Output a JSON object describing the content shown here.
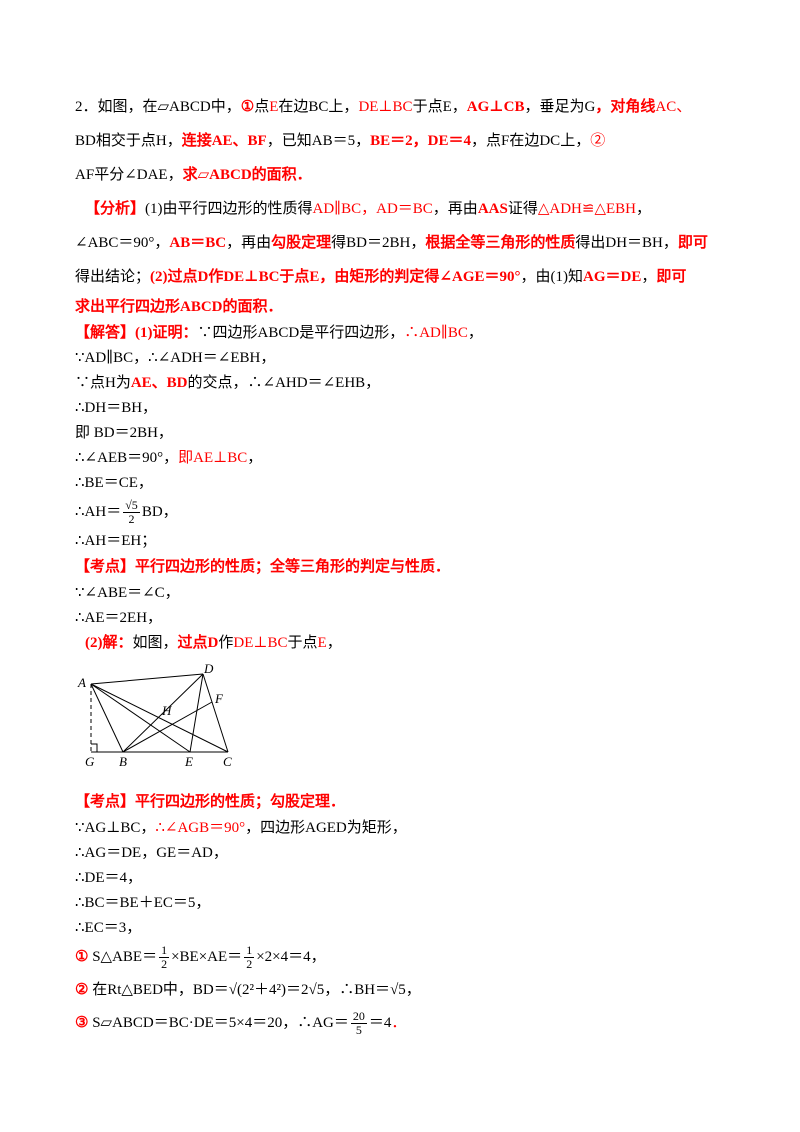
{
  "colors": {
    "red": "#ff0000",
    "black": "#000000",
    "background": "#ffffff"
  },
  "figure": {
    "labels": [
      "A",
      "D",
      "H",
      "F",
      "G",
      "B",
      "E",
      "C"
    ]
  },
  "lines": [
    {
      "k": "p",
      "blk": "t",
      "s": [
        {
          "t": "2．如图，在▱"
        },
        {
          "t": "ABCD"
        },
        {
          "t": "中，"
        },
        {
          "t": "①",
          "c": "r",
          "b": 1
        },
        {
          "t": "点"
        },
        {
          "t": "E",
          "c": "r"
        },
        {
          "t": "在边"
        },
        {
          "t": "BC"
        },
        {
          "t": "上，"
        },
        {
          "t": "DE⊥BC",
          "c": "r"
        },
        {
          "t": "于点"
        },
        {
          "t": "E"
        },
        {
          "t": "，"
        },
        {
          "t": "AG⊥CB",
          "c": "r",
          "b": 1
        },
        {
          "t": "，垂足为"
        },
        {
          "t": "G"
        },
        {
          "t": "，对角线",
          "c": "r",
          "b": 1
        },
        {
          "t": "AC、",
          "c": "r"
        }
      ]
    },
    {
      "k": "p",
      "blk": "t",
      "s": [
        {
          "t": "BD"
        },
        {
          "t": "相交于点"
        },
        {
          "t": "H"
        },
        {
          "t": "，"
        },
        {
          "t": "连接AE、BF",
          "c": "r",
          "b": 1
        },
        {
          "t": "，已知"
        },
        {
          "t": "AB＝5"
        },
        {
          "t": "，"
        },
        {
          "t": "BE＝2，DE＝4",
          "c": "r",
          "b": 1
        },
        {
          "t": "，点"
        },
        {
          "t": "F"
        },
        {
          "t": "在边"
        },
        {
          "t": "DC"
        },
        {
          "t": "上，"
        },
        {
          "t": "②",
          "c": "r"
        }
      ]
    },
    {
      "k": "p",
      "blk": "t",
      "s": [
        {
          "t": "AF"
        },
        {
          "t": "平分"
        },
        {
          "t": "∠DAE"
        },
        {
          "t": "，"
        },
        {
          "t": "求▱ABCD的面积．",
          "c": "r",
          "b": 1
        }
      ]
    },
    {
      "k": "p",
      "blk": "t",
      "ind": 1,
      "s": [
        {
          "t": "【分析】",
          "c": "r",
          "b": 1
        },
        {
          "t": "(1)由平行四边形的性质得"
        },
        {
          "t": "AD∥BC，AD＝BC",
          "c": "r"
        },
        {
          "t": "，再由"
        },
        {
          "t": "AAS",
          "c": "r",
          "b": 1
        },
        {
          "t": "证得"
        },
        {
          "t": "△ADH≌△EBH",
          "c": "r"
        },
        {
          "t": "，"
        }
      ]
    },
    {
      "k": "p",
      "blk": "t",
      "s": [
        {
          "t": "∠ABC＝90°，"
        },
        {
          "t": "AB＝BC",
          "c": "r",
          "b": 1
        },
        {
          "t": "，再由"
        },
        {
          "t": "勾股定理",
          "c": "r",
          "b": 1
        },
        {
          "t": "得"
        },
        {
          "t": "BD＝2BH"
        },
        {
          "t": "，"
        },
        {
          "t": "根据全等三角形的性质",
          "c": "r",
          "b": 1
        },
        {
          "t": "得出"
        },
        {
          "t": "DH＝BH"
        },
        {
          "t": "，"
        },
        {
          "t": "即可",
          "c": "r",
          "b": 1
        }
      ]
    },
    {
      "k": "p",
      "blk": "t",
      "s": [
        {
          "t": "得出结论；"
        },
        {
          "t": "(2)过点D作DE⊥BC于点E，由矩形的判定得∠AGE＝90°",
          "c": "r",
          "b": 1
        },
        {
          "t": "，由(1)知"
        },
        {
          "t": "AG＝DE",
          "c": "r",
          "b": 1
        },
        {
          "t": "，"
        },
        {
          "t": "即可",
          "c": "r",
          "b": 1
        }
      ]
    },
    {
      "k": "hd",
      "blk": "t",
      "s": [
        {
          "t": "求出平行四边形ABCD的面积．",
          "c": "r",
          "b": 1
        }
      ]
    },
    {
      "k": "eq",
      "blk": "t",
      "s": [
        {
          "t": "【解答】(1)证明：",
          "c": "r",
          "b": 1
        },
        {
          "t": "∵四边形"
        },
        {
          "t": "ABCD"
        },
        {
          "t": "是平行四边形，"
        },
        {
          "t": "∴AD∥BC",
          "c": "r"
        },
        {
          "t": "，"
        }
      ]
    },
    {
      "k": "eq",
      "blk": "t",
      "s": [
        {
          "t": "∵AD∥BC，∴∠ADH＝∠EBH，"
        }
      ]
    },
    {
      "k": "eq",
      "blk": "t",
      "s": [
        {
          "t": "∵点H为"
        },
        {
          "t": "AE、BD",
          "c": "r",
          "b": 1
        },
        {
          "t": "的交点，∴∠AHD＝∠EHB，"
        }
      ]
    },
    {
      "k": "eq",
      "blk": "t",
      "s": [
        {
          "t": "∴DH＝BH，"
        }
      ]
    },
    {
      "k": "eq",
      "blk": "t",
      "s": [
        {
          "t": "即 BD＝2BH，"
        }
      ]
    },
    {
      "k": "eq",
      "blk": "t",
      "s": [
        {
          "t": "∴∠AEB＝90°，"
        },
        {
          "t": "即AE⊥BC",
          "c": "r"
        },
        {
          "t": "，"
        }
      ]
    },
    {
      "k": "eq",
      "blk": "t",
      "s": [
        {
          "t": "∴BE＝CE，"
        }
      ]
    },
    {
      "k": "fr",
      "blk": "t",
      "s": [
        {
          "t": "∴AH＝"
        },
        {
          "f": [
            "√5",
            "2"
          ]
        },
        {
          "t": "BD，"
        }
      ]
    },
    {
      "k": "eq",
      "blk": "t",
      "s": [
        {
          "t": "∴AH＝EH；"
        }
      ]
    },
    {
      "k": "hd",
      "blk": "t",
      "s": [
        {
          "t": "【考点】平行四边形的性质；全等三角形的判定与性质．",
          "c": "r",
          "b": 1
        }
      ]
    },
    {
      "k": "eq",
      "blk": "t",
      "s": [
        {
          "t": "∵∠ABE＝∠C，"
        }
      ]
    },
    {
      "k": "eq",
      "blk": "t",
      "s": [
        {
          "t": "∴AE＝2EH，"
        }
      ]
    },
    {
      "k": "eq",
      "blk": "t",
      "ind": 1,
      "s": [
        {
          "t": "(2)解：",
          "c": "r",
          "b": 1
        },
        {
          "t": "如图，"
        },
        {
          "t": "过点D",
          "c": "r",
          "b": 1
        },
        {
          "t": "作"
        },
        {
          "t": "DE⊥BC",
          "c": "r"
        },
        {
          "t": "于点"
        },
        {
          "t": "E",
          "c": "r"
        },
        {
          "t": "，"
        }
      ]
    },
    {
      "k": "hd",
      "blk": "b",
      "s": [
        {
          "t": "【考点】平行四边形的性质；勾股定理．",
          "c": "r",
          "b": 1
        }
      ]
    },
    {
      "k": "eq",
      "blk": "b",
      "s": [
        {
          "t": "∵AG⊥BC，"
        },
        {
          "t": "∴∠AGB＝90°",
          "c": "r"
        },
        {
          "t": "，四边形AGED为矩形，"
        }
      ]
    },
    {
      "k": "eq",
      "blk": "b",
      "s": [
        {
          "t": "∴AG＝DE，GE＝AD，"
        }
      ]
    },
    {
      "k": "eq",
      "blk": "b",
      "s": [
        {
          "t": "∴DE＝4，"
        }
      ]
    },
    {
      "k": "eq",
      "blk": "b",
      "s": [
        {
          "t": "∴BC＝BE＋EC＝5，"
        }
      ]
    },
    {
      "k": "eq",
      "blk": "b",
      "s": [
        {
          "t": "∴EC＝3，"
        }
      ]
    },
    {
      "k": "fr",
      "blk": "b",
      "s": [
        {
          "t": "①",
          "c": "r",
          "b": 1
        },
        {
          "t": " S△ABE＝"
        },
        {
          "f": [
            "1",
            "2"
          ]
        },
        {
          "t": "×BE×AE＝"
        },
        {
          "f": [
            "1",
            "2"
          ]
        },
        {
          "t": "×2×4＝4，"
        }
      ]
    },
    {
      "k": "fr",
      "blk": "b",
      "s": [
        {
          "t": "②",
          "c": "r",
          "b": 1
        },
        {
          "t": " 在Rt△BED中，BD＝"
        },
        {
          "t": "√(2²＋4²)"
        },
        {
          "t": "＝2"
        },
        {
          "t": "√5"
        },
        {
          "t": "，∴BH＝"
        },
        {
          "t": "√5"
        },
        {
          "t": "，"
        }
      ]
    },
    {
      "k": "fr",
      "blk": "b",
      "s": [
        {
          "t": "③",
          "c": "r",
          "b": 1
        },
        {
          "t": " S▱ABCD＝BC·DE＝5×4＝20，∴AG＝"
        },
        {
          "f": [
            "20",
            "5"
          ]
        },
        {
          "t": "＝4"
        },
        {
          "t": "．",
          "c": "r"
        }
      ]
    }
  ]
}
